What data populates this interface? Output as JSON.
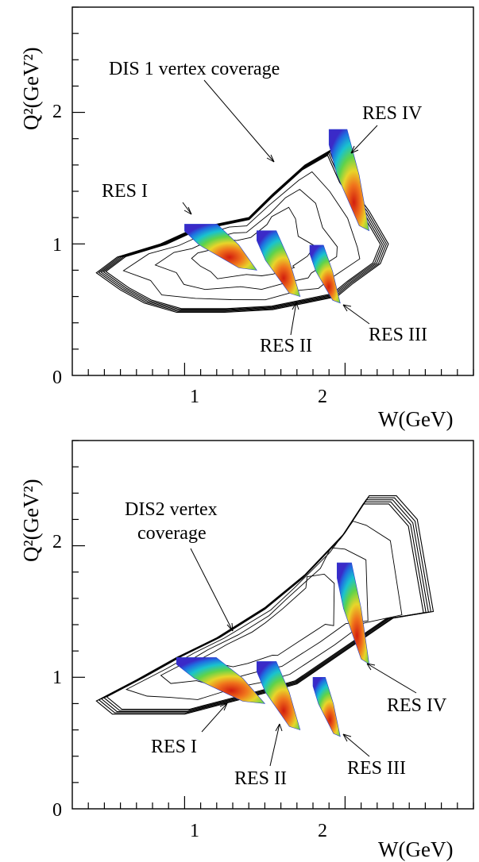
{
  "chart_data": [
    {
      "type": "heatmap",
      "xlabel": "W(GeV)",
      "ylabel": "Q²(GeV²)",
      "xlim": [
        0.3,
        2.8
      ],
      "ylim": [
        0,
        2.8
      ],
      "x_ticks": [
        "1",
        "2"
      ],
      "y_ticks": [
        "0",
        "1",
        "2"
      ],
      "annotations": [
        "DIS 1 vertex coverage",
        "RES I",
        "RES II",
        "RES III",
        "RES IV"
      ],
      "coverage_outline": [
        [
          0.45,
          0.78
        ],
        [
          0.58,
          0.9
        ],
        [
          0.85,
          1.0
        ],
        [
          1.03,
          1.1
        ],
        [
          1.2,
          1.15
        ],
        [
          1.4,
          1.2
        ],
        [
          1.55,
          1.38
        ],
        [
          1.75,
          1.6
        ],
        [
          1.92,
          1.72
        ],
        [
          2.0,
          1.5
        ],
        [
          2.15,
          1.25
        ],
        [
          2.27,
          1.0
        ],
        [
          2.22,
          0.85
        ],
        [
          2.05,
          0.7
        ],
        [
          1.95,
          0.6
        ],
        [
          1.75,
          0.55
        ],
        [
          1.55,
          0.5
        ],
        [
          1.25,
          0.48
        ],
        [
          0.95,
          0.48
        ],
        [
          0.75,
          0.55
        ],
        [
          0.6,
          0.65
        ]
      ],
      "resonance_regions": [
        {
          "name": "RES I",
          "w_range": [
            1.0,
            1.45
          ],
          "q2_range": [
            0.8,
            1.15
          ]
        },
        {
          "name": "RES II",
          "w_range": [
            1.45,
            1.72
          ],
          "q2_range": [
            0.6,
            1.1
          ]
        },
        {
          "name": "RES III",
          "w_range": [
            1.78,
            1.97
          ],
          "q2_range": [
            0.55,
            0.99
          ]
        },
        {
          "name": "RES IV",
          "w_range": [
            1.9,
            2.15
          ],
          "q2_range": [
            1.1,
            1.87
          ]
        }
      ]
    },
    {
      "type": "heatmap",
      "xlabel": "W(GeV)",
      "ylabel": "Q²(GeV²)",
      "xlim": [
        0.3,
        2.8
      ],
      "ylim": [
        0,
        2.8
      ],
      "x_ticks": [
        "1",
        "2"
      ],
      "y_ticks": [
        "0",
        "1",
        "2"
      ],
      "annotations": [
        "DIS2 vertex",
        "coverage",
        "RES I",
        "RES II",
        "RES III",
        "RES IV"
      ],
      "coverage_outline": [
        [
          0.45,
          0.82
        ],
        [
          0.7,
          0.98
        ],
        [
          0.95,
          1.15
        ],
        [
          1.2,
          1.3
        ],
        [
          1.5,
          1.53
        ],
        [
          1.75,
          1.78
        ],
        [
          2.0,
          2.1
        ],
        [
          2.15,
          2.38
        ],
        [
          2.32,
          2.38
        ],
        [
          2.45,
          2.2
        ],
        [
          2.55,
          1.5
        ],
        [
          2.3,
          1.45
        ],
        [
          2.0,
          1.2
        ],
        [
          1.7,
          0.95
        ],
        [
          1.5,
          0.88
        ],
        [
          1.25,
          0.8
        ],
        [
          1.0,
          0.72
        ],
        [
          0.75,
          0.72
        ],
        [
          0.55,
          0.72
        ]
      ],
      "resonance_regions": [
        {
          "name": "RES I",
          "w_range": [
            0.95,
            1.5
          ],
          "q2_range": [
            0.8,
            1.15
          ]
        },
        {
          "name": "RES II",
          "w_range": [
            1.45,
            1.72
          ],
          "q2_range": [
            0.6,
            1.12
          ]
        },
        {
          "name": "RES III",
          "w_range": [
            1.8,
            1.97
          ],
          "q2_range": [
            0.55,
            1.0
          ]
        },
        {
          "name": "RES IV",
          "w_range": [
            1.95,
            2.15
          ],
          "q2_range": [
            1.1,
            1.87
          ]
        }
      ]
    }
  ]
}
